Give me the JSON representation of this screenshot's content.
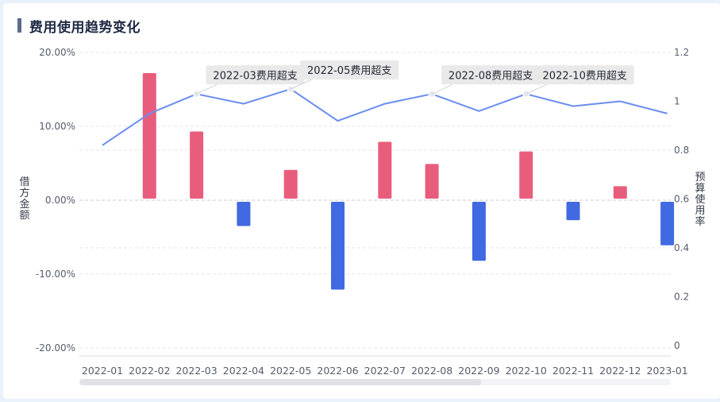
{
  "page_title": "费用使用趋势变化",
  "colors": {
    "positive_bar": "#e95d7c",
    "negative_bar": "#4169e1",
    "line": "#6b8def",
    "grid": "#e3e6ec",
    "axis_text": "#555d6b",
    "callout_bg": "#e9e9ea",
    "scrollbar_track": "#f3f4f6",
    "scrollbar_thumb": "#e1e2e6"
  },
  "chart_data": {
    "type": "bar",
    "categories": [
      "2022-01",
      "2022-02",
      "2022-03",
      "2022-04",
      "2022-05",
      "2022-06",
      "2022-07",
      "2022-08",
      "2022-09",
      "2022-10",
      "2022-11",
      "2022-12",
      "2023-01"
    ],
    "series": [
      {
        "axis": "left",
        "type": "bar",
        "values": [
          0,
          17.2,
          9.3,
          -3.5,
          4.1,
          -12.1,
          7.9,
          4.9,
          -8.2,
          6.6,
          -2.7,
          1.9,
          -6.1
        ]
      },
      {
        "axis": "right",
        "type": "line",
        "values": [
          0.82,
          0.95,
          1.03,
          0.99,
          1.05,
          0.92,
          0.99,
          1.03,
          0.96,
          1.03,
          0.98,
          1.0,
          0.95
        ]
      }
    ],
    "ylabel": "借方金额",
    "ylabel_right": "预算使用率",
    "ylim": [
      -20,
      20
    ],
    "ylim_right": [
      0,
      1.2
    ],
    "yticks": [
      "20.00%",
      "10.00%",
      "0.00%",
      "-10.00%",
      "-20.00%"
    ],
    "yticks_right": [
      "1.2",
      "1",
      "0.8",
      "0.6",
      "0.4",
      "0.2",
      "0"
    ],
    "annotations": [
      {
        "category": "2022-03",
        "text": "2022-03费用超支"
      },
      {
        "category": "2022-05",
        "text": "2022-05费用超支"
      },
      {
        "category": "2022-08",
        "text": "2022-08费用超支"
      },
      {
        "category": "2022-10",
        "text": "2022-10费用超支"
      }
    ],
    "grid": true
  },
  "scrollbar": {
    "position": 0,
    "visible_fraction": 0.68
  }
}
